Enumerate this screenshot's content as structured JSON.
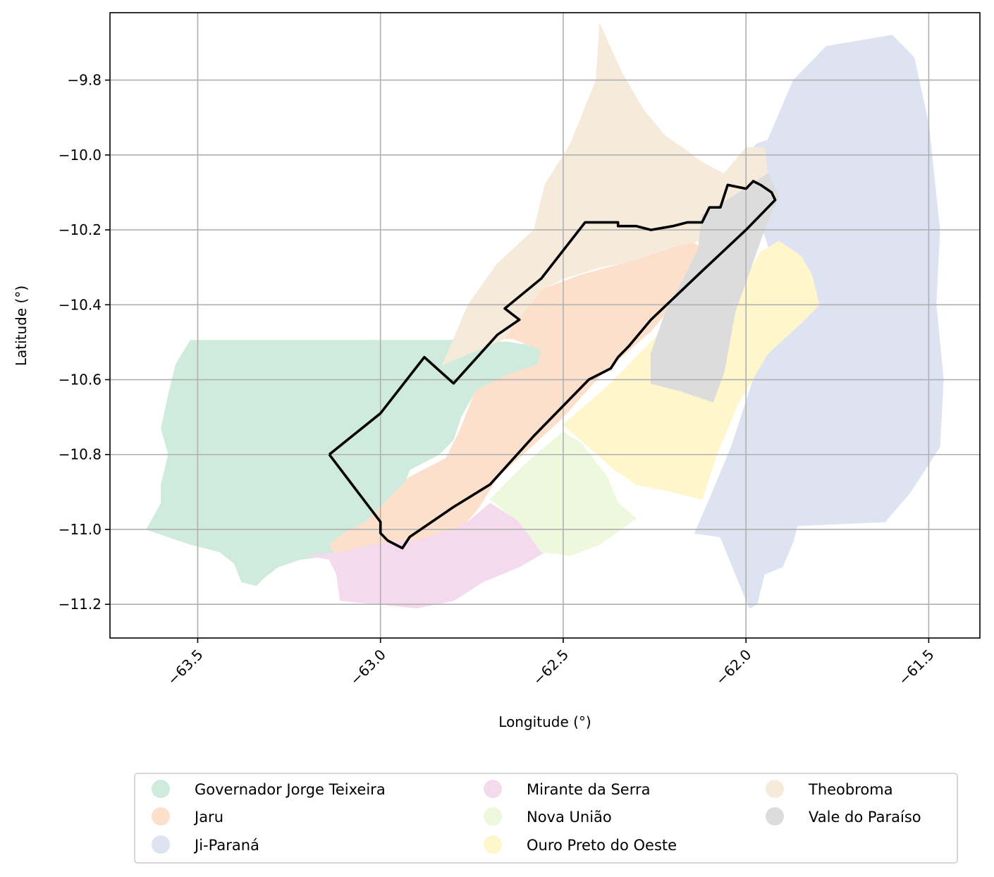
{
  "chart_data": {
    "type": "map",
    "xlabel": "Longitude (°)",
    "ylabel": "Latitude (°)",
    "xlim": [
      -63.74,
      -61.36
    ],
    "ylim": [
      -11.29,
      -9.62
    ],
    "grid": true,
    "legend_placement": "bottom-center",
    "x_ticks": [
      {
        "value": -63.5,
        "label": "−63.5"
      },
      {
        "value": -63.0,
        "label": "−63.0"
      },
      {
        "value": -62.5,
        "label": "−62.5"
      },
      {
        "value": -62.0,
        "label": "−62.0"
      },
      {
        "value": -61.5,
        "label": "−61.5"
      }
    ],
    "y_ticks": [
      {
        "value": -9.8,
        "label": "−9.8"
      },
      {
        "value": -10.0,
        "label": "−10.0"
      },
      {
        "value": -10.2,
        "label": "−10.2"
      },
      {
        "value": -10.4,
        "label": "−10.4"
      },
      {
        "value": -10.6,
        "label": "−10.6"
      },
      {
        "value": -10.8,
        "label": "−10.8"
      },
      {
        "value": -11.0,
        "label": "−11.0"
      },
      {
        "value": -11.2,
        "label": "−11.2"
      }
    ],
    "regions": [
      {
        "name": "Governador Jorge Teixeira",
        "color": "#cfebdd",
        "polygon": [
          [
            -63.52,
            -10.495
          ],
          [
            -62.8,
            -10.495
          ],
          [
            -62.65,
            -10.5
          ],
          [
            -62.55,
            -10.515
          ],
          [
            -62.57,
            -10.56
          ],
          [
            -62.66,
            -10.59
          ],
          [
            -62.74,
            -10.63
          ],
          [
            -62.78,
            -10.7
          ],
          [
            -62.8,
            -10.76
          ],
          [
            -62.84,
            -10.8
          ],
          [
            -62.92,
            -10.84
          ],
          [
            -62.95,
            -10.92
          ],
          [
            -63.0,
            -10.99
          ],
          [
            -63.04,
            -11.01
          ],
          [
            -63.1,
            -11.04
          ],
          [
            -63.13,
            -11.07
          ],
          [
            -63.22,
            -11.08
          ],
          [
            -63.28,
            -11.1
          ],
          [
            -63.32,
            -11.13
          ],
          [
            -63.34,
            -11.15
          ],
          [
            -63.38,
            -11.14
          ],
          [
            -63.4,
            -11.09
          ],
          [
            -63.44,
            -11.06
          ],
          [
            -63.52,
            -11.04
          ],
          [
            -63.58,
            -11.02
          ],
          [
            -63.64,
            -11.0
          ],
          [
            -63.6,
            -10.93
          ],
          [
            -63.6,
            -10.88
          ],
          [
            -63.58,
            -10.8
          ],
          [
            -63.6,
            -10.73
          ],
          [
            -63.58,
            -10.64
          ],
          [
            -63.56,
            -10.56
          ]
        ]
      },
      {
        "name": "Jaru",
        "color": "#fce0cb",
        "polygon": [
          [
            -62.66,
            -10.29
          ],
          [
            -62.56,
            -10.36
          ],
          [
            -62.45,
            -10.32
          ],
          [
            -62.3,
            -10.28
          ],
          [
            -62.15,
            -10.23
          ],
          [
            -62.12,
            -10.25
          ],
          [
            -62.15,
            -10.34
          ],
          [
            -62.26,
            -10.47
          ],
          [
            -62.4,
            -10.59
          ],
          [
            -62.5,
            -10.7
          ],
          [
            -62.6,
            -10.79
          ],
          [
            -62.68,
            -10.86
          ],
          [
            -62.73,
            -10.94
          ],
          [
            -62.78,
            -11.0
          ],
          [
            -62.88,
            -11.03
          ],
          [
            -63.02,
            -11.04
          ],
          [
            -63.12,
            -11.07
          ],
          [
            -63.14,
            -11.04
          ],
          [
            -63.1,
            -11.01
          ],
          [
            -63.04,
            -10.98
          ],
          [
            -62.98,
            -10.92
          ],
          [
            -62.92,
            -10.86
          ],
          [
            -62.82,
            -10.81
          ],
          [
            -62.78,
            -10.73
          ],
          [
            -62.74,
            -10.63
          ],
          [
            -62.66,
            -10.59
          ],
          [
            -62.57,
            -10.56
          ],
          [
            -62.56,
            -10.52
          ],
          [
            -62.64,
            -10.49
          ],
          [
            -62.76,
            -10.49
          ]
        ]
      },
      {
        "name": "Ji-Paraná",
        "color": "#dee3f2",
        "polygon": [
          [
            -61.94,
            -9.96
          ],
          [
            -61.87,
            -9.8
          ],
          [
            -61.78,
            -9.71
          ],
          [
            -61.6,
            -9.68
          ],
          [
            -61.54,
            -9.74
          ],
          [
            -61.5,
            -9.92
          ],
          [
            -61.47,
            -10.2
          ],
          [
            -61.48,
            -10.4
          ],
          [
            -61.46,
            -10.6
          ],
          [
            -61.47,
            -10.78
          ],
          [
            -61.55,
            -10.9
          ],
          [
            -61.62,
            -10.98
          ],
          [
            -61.86,
            -10.99
          ],
          [
            -61.87,
            -11.03
          ],
          [
            -61.9,
            -11.1
          ],
          [
            -61.95,
            -11.12
          ],
          [
            -61.97,
            -11.2
          ],
          [
            -61.99,
            -11.21
          ],
          [
            -62.02,
            -11.14
          ],
          [
            -62.07,
            -11.02
          ],
          [
            -62.14,
            -11.01
          ],
          [
            -62.1,
            -10.92
          ],
          [
            -62.04,
            -10.78
          ],
          [
            -61.98,
            -10.6
          ],
          [
            -61.93,
            -10.45
          ],
          [
            -61.9,
            -10.36
          ],
          [
            -61.92,
            -10.3
          ],
          [
            -61.98,
            -10.12
          ],
          [
            -62.0,
            -10.0
          ],
          [
            -61.97,
            -9.97
          ]
        ]
      },
      {
        "name": "Mirante da Serra",
        "color": "#f5daed",
        "polygon": [
          [
            -63.2,
            -11.07
          ],
          [
            -63.14,
            -11.08
          ],
          [
            -63.12,
            -11.12
          ],
          [
            -63.11,
            -11.19
          ],
          [
            -63.0,
            -11.2
          ],
          [
            -62.9,
            -11.21
          ],
          [
            -62.8,
            -11.19
          ],
          [
            -62.72,
            -11.14
          ],
          [
            -62.62,
            -11.1
          ],
          [
            -62.55,
            -11.06
          ],
          [
            -62.62,
            -10.98
          ],
          [
            -62.7,
            -10.93
          ],
          [
            -62.76,
            -10.98
          ],
          [
            -62.8,
            -11.0
          ],
          [
            -62.9,
            -11.03
          ],
          [
            -63.02,
            -11.04
          ],
          [
            -63.1,
            -11.06
          ]
        ]
      },
      {
        "name": "Nova União",
        "color": "#eef8dd",
        "polygon": [
          [
            -62.7,
            -10.92
          ],
          [
            -62.62,
            -10.84
          ],
          [
            -62.55,
            -10.78
          ],
          [
            -62.5,
            -10.74
          ],
          [
            -62.45,
            -10.77
          ],
          [
            -62.38,
            -10.86
          ],
          [
            -62.35,
            -10.93
          ],
          [
            -62.3,
            -10.97
          ],
          [
            -62.4,
            -11.04
          ],
          [
            -62.48,
            -11.07
          ],
          [
            -62.56,
            -11.06
          ],
          [
            -62.62,
            -10.98
          ]
        ]
      },
      {
        "name": "Ouro Preto do Oeste",
        "color": "#fff6cb",
        "polygon": [
          [
            -62.5,
            -10.72
          ],
          [
            -62.38,
            -10.62
          ],
          [
            -62.26,
            -10.5
          ],
          [
            -62.18,
            -10.43
          ],
          [
            -62.12,
            -10.4
          ],
          [
            -62.02,
            -10.36
          ],
          [
            -61.96,
            -10.26
          ],
          [
            -61.91,
            -10.23
          ],
          [
            -61.85,
            -10.27
          ],
          [
            -61.82,
            -10.32
          ],
          [
            -61.8,
            -10.4
          ],
          [
            -61.85,
            -10.45
          ],
          [
            -61.94,
            -10.53
          ],
          [
            -62.02,
            -10.66
          ],
          [
            -62.08,
            -10.8
          ],
          [
            -62.12,
            -10.92
          ],
          [
            -62.2,
            -10.9
          ],
          [
            -62.3,
            -10.88
          ],
          [
            -62.36,
            -10.84
          ],
          [
            -62.43,
            -10.78
          ]
        ]
      },
      {
        "name": "Theobroma",
        "color": "#f6eadb",
        "polygon": [
          [
            -62.83,
            -10.56
          ],
          [
            -62.76,
            -10.4
          ],
          [
            -62.68,
            -10.29
          ],
          [
            -62.58,
            -10.2
          ],
          [
            -62.55,
            -10.08
          ],
          [
            -62.48,
            -9.97
          ],
          [
            -62.41,
            -9.8
          ],
          [
            -62.4,
            -9.65
          ],
          [
            -62.34,
            -9.78
          ],
          [
            -62.28,
            -9.88
          ],
          [
            -62.22,
            -9.95
          ],
          [
            -62.16,
            -9.99
          ],
          [
            -62.12,
            -10.02
          ],
          [
            -62.06,
            -10.05
          ],
          [
            -62.0,
            -9.98
          ],
          [
            -61.95,
            -9.98
          ],
          [
            -61.94,
            -10.06
          ],
          [
            -61.96,
            -10.15
          ],
          [
            -61.98,
            -10.2
          ],
          [
            -62.04,
            -10.2
          ],
          [
            -62.13,
            -10.23
          ],
          [
            -62.22,
            -10.25
          ],
          [
            -62.3,
            -10.28
          ],
          [
            -62.4,
            -10.3
          ],
          [
            -62.5,
            -10.33
          ],
          [
            -62.56,
            -10.36
          ],
          [
            -62.6,
            -10.41
          ],
          [
            -62.66,
            -10.49
          ]
        ]
      },
      {
        "name": "Vale do Paraíso",
        "color": "#dcdcdc",
        "polygon": [
          [
            -62.05,
            -10.12
          ],
          [
            -61.94,
            -10.05
          ],
          [
            -61.91,
            -10.11
          ],
          [
            -61.95,
            -10.2
          ],
          [
            -61.99,
            -10.31
          ],
          [
            -62.03,
            -10.42
          ],
          [
            -62.06,
            -10.58
          ],
          [
            -62.09,
            -10.66
          ],
          [
            -62.18,
            -10.63
          ],
          [
            -62.26,
            -10.61
          ],
          [
            -62.26,
            -10.53
          ],
          [
            -62.22,
            -10.42
          ],
          [
            -62.17,
            -10.33
          ],
          [
            -62.13,
            -10.25
          ],
          [
            -62.12,
            -10.16
          ]
        ]
      }
    ],
    "outline": [
      [
        -63.14,
        -10.8
      ],
      [
        -63.0,
        -10.69
      ],
      [
        -62.88,
        -10.54
      ],
      [
        -62.8,
        -10.61
      ],
      [
        -62.68,
        -10.48
      ],
      [
        -62.62,
        -10.44
      ],
      [
        -62.66,
        -10.41
      ],
      [
        -62.56,
        -10.33
      ],
      [
        -62.44,
        -10.18
      ],
      [
        -62.35,
        -10.18
      ],
      [
        -62.35,
        -10.19
      ],
      [
        -62.3,
        -10.19
      ],
      [
        -62.26,
        -10.2
      ],
      [
        -62.2,
        -10.19
      ],
      [
        -62.16,
        -10.18
      ],
      [
        -62.12,
        -10.18
      ],
      [
        -62.1,
        -10.14
      ],
      [
        -62.07,
        -10.14
      ],
      [
        -62.05,
        -10.08
      ],
      [
        -62.0,
        -10.09
      ],
      [
        -61.98,
        -10.07
      ],
      [
        -61.96,
        -10.08
      ],
      [
        -61.93,
        -10.1
      ],
      [
        -61.92,
        -10.12
      ],
      [
        -62.0,
        -10.2
      ],
      [
        -62.12,
        -10.31
      ],
      [
        -62.26,
        -10.44
      ],
      [
        -62.32,
        -10.51
      ],
      [
        -62.35,
        -10.54
      ],
      [
        -62.37,
        -10.57
      ],
      [
        -62.43,
        -10.6
      ],
      [
        -62.58,
        -10.75
      ],
      [
        -62.7,
        -10.88
      ],
      [
        -62.8,
        -10.94
      ],
      [
        -62.92,
        -11.02
      ],
      [
        -62.94,
        -11.05
      ],
      [
        -62.98,
        -11.03
      ],
      [
        -63.0,
        -11.01
      ],
      [
        -63.0,
        -10.98
      ],
      [
        -63.14,
        -10.8
      ]
    ],
    "legend": {
      "columns": [
        [
          {
            "name": "Governador Jorge Teixeira",
            "color": "#cfebdd"
          },
          {
            "name": "Jaru",
            "color": "#fce0cb"
          },
          {
            "name": "Ji-Paraná",
            "color": "#dee3f2"
          }
        ],
        [
          {
            "name": "Mirante da Serra",
            "color": "#f5daed"
          },
          {
            "name": "Nova União",
            "color": "#eef8dd"
          },
          {
            "name": "Ouro Preto do Oeste",
            "color": "#fff6cb"
          }
        ],
        [
          {
            "name": "Theobroma",
            "color": "#f6eadb"
          },
          {
            "name": "Vale do Paraíso",
            "color": "#dcdcdc"
          }
        ]
      ]
    }
  }
}
